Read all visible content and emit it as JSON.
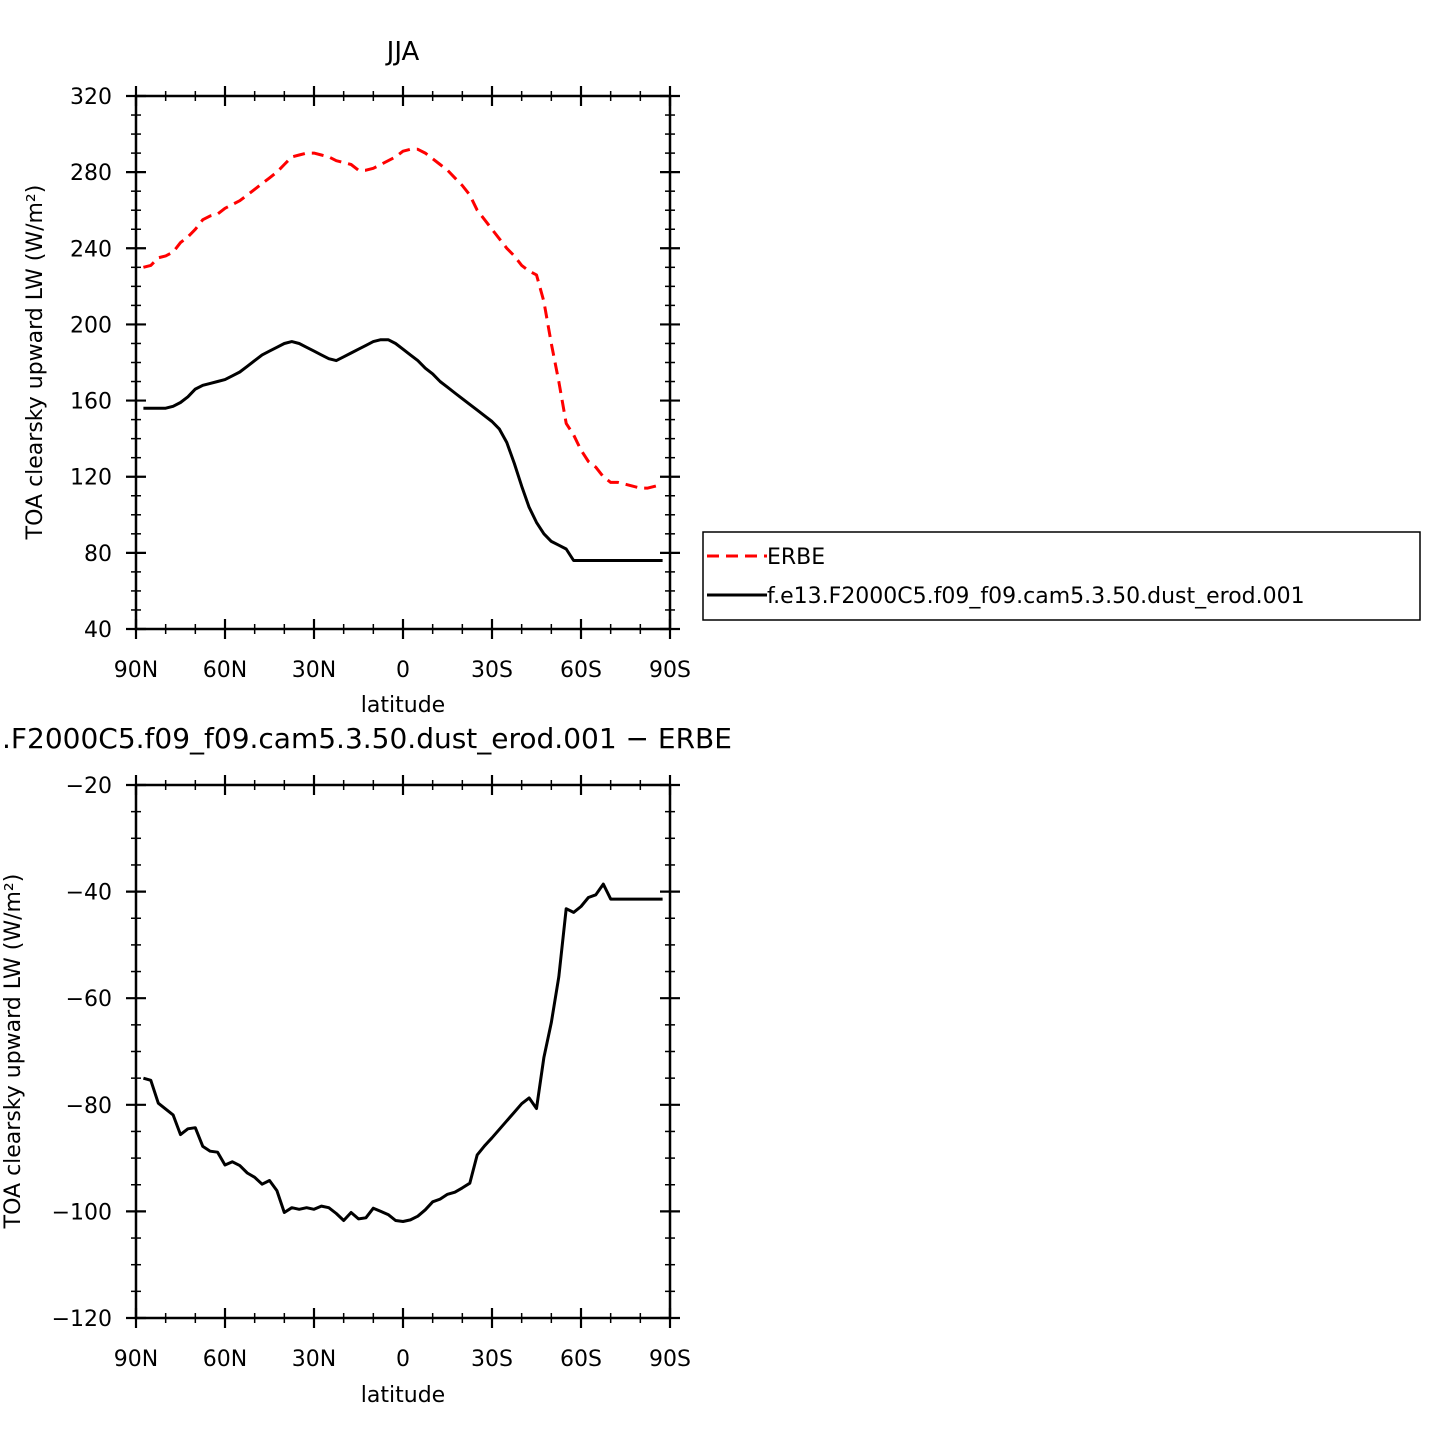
{
  "chart_data": [
    {
      "type": "line",
      "title": "JJA",
      "xlabel": "latitude",
      "ylabel": "TOA clearsky upward LW (W/m²)",
      "xlim": [
        90,
        -90
      ],
      "ylim": [
        40,
        320
      ],
      "yticks": [
        40,
        80,
        120,
        160,
        200,
        240,
        280,
        320
      ],
      "xticks": [
        {
          "value": 90,
          "label": "90N"
        },
        {
          "value": 60,
          "label": "60N"
        },
        {
          "value": 30,
          "label": "30N"
        },
        {
          "value": 0,
          "label": "0"
        },
        {
          "value": -30,
          "label": "30S"
        },
        {
          "value": -60,
          "label": "60S"
        },
        {
          "value": -90,
          "label": "90S"
        }
      ],
      "legend": {
        "position": "right"
      },
      "series": [
        {
          "name": "ERBE",
          "color": "#ff0000",
          "dash": "dashed",
          "x": [
            87.5,
            85,
            82.5,
            80,
            77.5,
            75,
            72.5,
            70,
            67.5,
            65,
            62.5,
            60,
            57.5,
            55,
            52.5,
            50,
            47.5,
            45,
            42.5,
            40,
            37.5,
            35,
            32.5,
            30,
            27.5,
            25,
            22.5,
            20,
            17.5,
            15,
            12.5,
            10,
            7.5,
            5,
            2.5,
            0,
            -2.5,
            -5,
            -7.5,
            -10,
            -12.5,
            -15,
            -17.5,
            -20,
            -22.5,
            -25,
            -27.5,
            -30,
            -32.5,
            -35,
            -37.5,
            -40,
            -42.5,
            -45,
            -47.5,
            -50,
            -52.5,
            -55,
            -57.5,
            -60,
            -62.5,
            -65,
            -67.5,
            -70,
            -72.5,
            -75,
            -77.5,
            -80,
            -82.5,
            -85,
            -87.5
          ],
          "y": [
            230,
            231,
            235,
            236,
            238,
            243,
            246,
            250,
            255,
            257,
            258,
            261,
            263,
            265,
            268,
            271,
            274,
            277,
            280,
            284,
            288,
            289,
            290,
            290,
            289,
            288,
            286,
            285,
            284,
            281,
            281,
            282,
            284,
            286,
            288,
            291,
            292,
            292,
            290,
            287,
            284,
            281,
            277,
            273,
            268,
            260,
            255,
            250,
            245,
            240,
            236,
            231,
            228,
            226,
            212,
            190,
            170,
            148,
            142,
            134,
            128,
            125,
            120,
            117,
            117,
            116,
            115,
            114,
            114,
            115,
            116
          ]
        },
        {
          "name": "f.e13.F2000C5.f09_f09.cam5.3.50.dust_erod.001",
          "color": "#000000",
          "dash": "solid",
          "x": [
            87.5,
            85,
            82.5,
            80,
            77.5,
            75,
            72.5,
            70,
            67.5,
            65,
            62.5,
            60,
            57.5,
            55,
            52.5,
            50,
            47.5,
            45,
            42.5,
            40,
            37.5,
            35,
            32.5,
            30,
            27.5,
            25,
            22.5,
            20,
            17.5,
            15,
            12.5,
            10,
            7.5,
            5,
            2.5,
            0,
            -2.5,
            -5,
            -7.5,
            -10,
            -12.5,
            -15,
            -17.5,
            -20,
            -22.5,
            -25,
            -27.5,
            -30,
            -32.5,
            -35,
            -37.5,
            -40,
            -42.5,
            -45,
            -47.5,
            -50,
            -52.5,
            -55,
            -57.5,
            -60,
            -62.5,
            -65,
            -67.5,
            -70,
            -72.5,
            -75,
            -77.5,
            -80,
            -82.5,
            -85,
            -87.5
          ],
          "y": [
            156,
            156,
            156,
            156,
            157,
            159,
            162,
            166,
            168,
            169,
            170,
            171,
            173,
            175,
            178,
            181,
            184,
            186,
            188,
            190,
            191,
            190,
            188,
            186,
            184,
            182,
            181,
            183,
            185,
            187,
            189,
            191,
            192,
            192,
            190,
            187,
            184,
            181,
            177,
            174,
            170,
            167,
            164,
            161,
            158,
            155,
            152,
            149,
            145,
            138,
            127,
            115,
            104,
            96,
            90,
            86,
            84,
            82,
            76,
            76,
            76,
            76,
            76,
            76,
            76,
            76,
            76,
            76,
            76,
            76,
            76
          ]
        }
      ]
    },
    {
      "type": "line",
      "title": ".F2000C5.f09_f09.cam5.3.50.dust_erod.001 − ERBE",
      "xlabel": "latitude",
      "ylabel": "TOA clearsky upward LW (W/m²)",
      "xlim": [
        90,
        -90
      ],
      "ylim": [
        -120,
        -20
      ],
      "yticks": [
        -120,
        -100,
        -80,
        -60,
        -40,
        -20
      ],
      "ytick_labels": [
        "−120",
        "−100",
        "−80",
        "−60",
        "−40",
        "−20"
      ],
      "xticks": [
        {
          "value": 90,
          "label": "90N"
        },
        {
          "value": 60,
          "label": "60N"
        },
        {
          "value": 30,
          "label": "30N"
        },
        {
          "value": 0,
          "label": "0"
        },
        {
          "value": -30,
          "label": "30S"
        },
        {
          "value": -60,
          "label": "60S"
        },
        {
          "value": -90,
          "label": "90S"
        }
      ],
      "series": [
        {
          "color": "#000000",
          "dash": "solid",
          "x": [
            87.5,
            85,
            82.5,
            80,
            77.5,
            75,
            72.5,
            70,
            67.5,
            65,
            62.5,
            60,
            57.5,
            55,
            52.5,
            50,
            47.5,
            45,
            42.5,
            40,
            37.5,
            35,
            32.5,
            30,
            27.5,
            25,
            22.5,
            20,
            17.5,
            15,
            12.5,
            10,
            7.5,
            5,
            2.5,
            0,
            -2.5,
            -5,
            -7.5,
            -10,
            -12.5,
            -15,
            -17.5,
            -20,
            -22.5,
            -25,
            -27.5,
            -30,
            -32.5,
            -35,
            -37.5,
            -40,
            -42.5,
            -45,
            -47.5,
            -50,
            -52.5,
            -55,
            -57.5,
            -60,
            -62.5,
            -65,
            -67.5,
            -70,
            -72.5,
            -75,
            -77.5,
            -80,
            -82.5,
            -85,
            -87.5
          ],
          "y": [
            -75,
            -75.4,
            -79.7,
            -80.8,
            -81.9,
            -85.6,
            -84.5,
            -84.3,
            -87.8,
            -88.7,
            -88.9,
            -91.3,
            -90.7,
            -91.4,
            -92.8,
            -93.6,
            -94.9,
            -94.2,
            -96.1,
            -100.2,
            -99.3,
            -99.6,
            -99.3,
            -99.6,
            -99,
            -99.3,
            -100.4,
            -101.7,
            -100.2,
            -101.4,
            -101.2,
            -99.4,
            -100,
            -100.6,
            -101.7,
            -101.9,
            -101.6,
            -100.9,
            -99.7,
            -98.2,
            -97.7,
            -96.8,
            -96.4,
            -95.6,
            -94.7,
            -89.4,
            -87.7,
            -86.2,
            -84.6,
            -83,
            -81.4,
            -79.8,
            -78.7,
            -80.7,
            -71.1,
            -64.6,
            -56,
            -43.2,
            -43.9,
            -42.8,
            -41.1,
            -40.6,
            -38.6,
            -41.4,
            -41.4,
            -41.4,
            -41.4,
            -41.4,
            -41.4,
            -41.4,
            -41.4
          ]
        }
      ]
    }
  ]
}
